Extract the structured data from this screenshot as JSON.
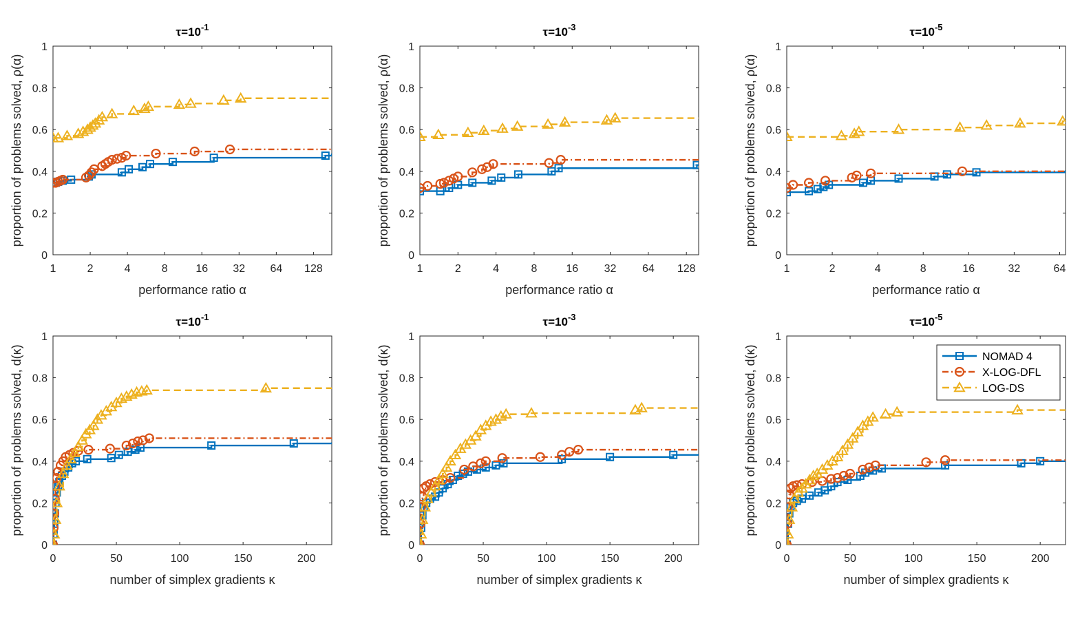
{
  "colors": {
    "nomad": "#0072BD",
    "xlogdfl": "#D95319",
    "logds": "#EDB120",
    "axis": "#262626"
  },
  "legend": {
    "entries": [
      "NOMAD 4",
      "X-LOG-DFL",
      "LOG-DS"
    ]
  },
  "chart_data": [
    {
      "type": "line",
      "xscale": "log2",
      "title": {
        "prefix": "τ=10",
        "exp": "-1"
      },
      "xlabel": "performance ratio α",
      "ylabel": "proportion of problems solved, ρ(α)",
      "xlim": [
        1,
        180
      ],
      "ylim": [
        0,
        1
      ],
      "xticks": [
        1,
        2,
        4,
        8,
        16,
        32,
        64,
        128
      ],
      "xticklabels": [
        "1",
        "2",
        "4",
        "8",
        "16",
        "32",
        "64",
        "128"
      ],
      "yticks": [
        0,
        0.2,
        0.4,
        0.6,
        0.8,
        1
      ],
      "yticklabels": [
        "0",
        "0.2",
        "0.4",
        "0.6",
        "0.8",
        "1"
      ],
      "series": [
        {
          "name": "NOMAD 4",
          "x": [
            1,
            1.05,
            1.1,
            1.2,
            1.4,
            1.95,
            2.05,
            3.6,
            4.1,
            5.3,
            6.1,
            9.3,
            20,
            160,
            180
          ],
          "y": [
            0.345,
            0.345,
            0.35,
            0.355,
            0.36,
            0.375,
            0.385,
            0.395,
            0.41,
            0.42,
            0.435,
            0.445,
            0.465,
            0.475,
            0.485
          ]
        },
        {
          "name": "X-LOG-DFL",
          "x": [
            1,
            1.05,
            1.1,
            1.15,
            1.2,
            1.85,
            1.95,
            2.05,
            2.15,
            2.5,
            2.65,
            2.8,
            3.0,
            3.3,
            3.6,
            3.9,
            6.8,
            14,
            27,
            180
          ],
          "y": [
            0.345,
            0.345,
            0.35,
            0.355,
            0.36,
            0.37,
            0.38,
            0.395,
            0.41,
            0.425,
            0.435,
            0.445,
            0.455,
            0.46,
            0.465,
            0.475,
            0.485,
            0.495,
            0.505,
            0.505
          ]
        },
        {
          "name": "LOG-DS",
          "x": [
            1,
            1.1,
            1.3,
            1.6,
            1.75,
            1.9,
            2.0,
            2.1,
            2.2,
            2.35,
            2.5,
            3.0,
            4.5,
            5.5,
            5.9,
            10.5,
            13,
            24,
            33,
            180
          ],
          "y": [
            0.56,
            0.56,
            0.57,
            0.58,
            0.59,
            0.6,
            0.61,
            0.62,
            0.63,
            0.645,
            0.66,
            0.675,
            0.69,
            0.7,
            0.71,
            0.72,
            0.725,
            0.74,
            0.75,
            0.75
          ]
        }
      ]
    },
    {
      "type": "line",
      "xscale": "log2",
      "title": {
        "prefix": "τ=10",
        "exp": "-3"
      },
      "xlabel": "performance ratio α",
      "ylabel": "proportion of problems solved, ρ(α)",
      "xlim": [
        1,
        160
      ],
      "ylim": [
        0,
        1
      ],
      "xticks": [
        1,
        2,
        4,
        8,
        16,
        32,
        64,
        128
      ],
      "xticklabels": [
        "1",
        "2",
        "4",
        "8",
        "16",
        "32",
        "64",
        "128"
      ],
      "yticks": [
        0,
        0.2,
        0.4,
        0.6,
        0.8,
        1
      ],
      "yticklabels": [
        "0",
        "0.2",
        "0.4",
        "0.6",
        "0.8",
        "1"
      ],
      "series": [
        {
          "name": "NOMAD 4",
          "x": [
            1,
            1.45,
            1.7,
            2.0,
            2.6,
            3.7,
            4.4,
            6.0,
            11,
            12.5,
            155,
            160
          ],
          "y": [
            0.305,
            0.305,
            0.32,
            0.335,
            0.345,
            0.355,
            0.37,
            0.385,
            0.4,
            0.415,
            0.43,
            0.43
          ]
        },
        {
          "name": "X-LOG-DFL",
          "x": [
            1,
            1.15,
            1.45,
            1.55,
            1.7,
            1.85,
            2.0,
            2.6,
            3.1,
            3.4,
            3.8,
            10.5,
            13,
            160
          ],
          "y": [
            0.32,
            0.33,
            0.34,
            0.345,
            0.355,
            0.365,
            0.375,
            0.395,
            0.41,
            0.42,
            0.435,
            0.44,
            0.455,
            0.455
          ]
        },
        {
          "name": "LOG-DS",
          "x": [
            1,
            1.4,
            2.4,
            3.2,
            4.5,
            5.9,
            10.3,
            14,
            30,
            35,
            160
          ],
          "y": [
            0.565,
            0.575,
            0.585,
            0.595,
            0.605,
            0.615,
            0.625,
            0.635,
            0.645,
            0.655,
            0.655
          ]
        }
      ]
    },
    {
      "type": "line",
      "xscale": "log2",
      "title": {
        "prefix": "τ=10",
        "exp": "-5"
      },
      "xlabel": "performance ratio α",
      "ylabel": "proportion of problems solved, ρ(α)",
      "xlim": [
        1,
        70
      ],
      "ylim": [
        0,
        1
      ],
      "xticks": [
        1,
        2,
        4,
        8,
        16,
        32,
        64
      ],
      "xticklabels": [
        "1",
        "2",
        "4",
        "8",
        "16",
        "32",
        "64"
      ],
      "yticks": [
        0,
        0.2,
        0.4,
        0.6,
        0.8,
        1
      ],
      "yticklabels": [
        "0",
        "0.2",
        "0.4",
        "0.6",
        "0.8",
        "1"
      ],
      "series": [
        {
          "name": "NOMAD 4",
          "x": [
            1,
            1.4,
            1.6,
            1.75,
            1.9,
            3.2,
            3.6,
            5.5,
            9.5,
            11.5,
            18,
            70
          ],
          "y": [
            0.3,
            0.305,
            0.315,
            0.325,
            0.335,
            0.345,
            0.355,
            0.365,
            0.375,
            0.385,
            0.395,
            0.405
          ]
        },
        {
          "name": "X-LOG-DFL",
          "x": [
            1,
            1.1,
            1.4,
            1.8,
            2.7,
            2.9,
            3.6,
            14.5,
            70
          ],
          "y": [
            0.32,
            0.335,
            0.345,
            0.355,
            0.37,
            0.38,
            0.39,
            0.4,
            0.405
          ]
        },
        {
          "name": "LOG-DS",
          "x": [
            1,
            2.3,
            2.8,
            3.0,
            5.5,
            14,
            21,
            35,
            67,
            70
          ],
          "y": [
            0.565,
            0.57,
            0.58,
            0.59,
            0.6,
            0.61,
            0.62,
            0.63,
            0.64,
            0.64
          ]
        }
      ]
    },
    {
      "type": "line",
      "xscale": "linear",
      "title": {
        "prefix": "τ=10",
        "exp": "-1"
      },
      "xlabel": "number of simplex gradients κ",
      "ylabel": "proportion of problems solved, d(κ)",
      "xlim": [
        0,
        220
      ],
      "ylim": [
        0,
        1
      ],
      "xticks": [
        0,
        50,
        100,
        150,
        200
      ],
      "xticklabels": [
        "0",
        "50",
        "100",
        "150",
        "200"
      ],
      "yticks": [
        0,
        0.2,
        0.4,
        0.6,
        0.8,
        1
      ],
      "yticklabels": [
        "0",
        "0.2",
        "0.4",
        "0.6",
        "0.8",
        "1"
      ],
      "series": [
        {
          "name": "NOMAD 4",
          "x": [
            0,
            0.5,
            1,
            1.5,
            2,
            3,
            4,
            5,
            7,
            9,
            12,
            15,
            18,
            27,
            46,
            52,
            59,
            65,
            69,
            125,
            190,
            220
          ],
          "y": [
            0,
            0.05,
            0.1,
            0.15,
            0.2,
            0.25,
            0.28,
            0.3,
            0.33,
            0.35,
            0.37,
            0.39,
            0.4,
            0.41,
            0.415,
            0.43,
            0.445,
            0.455,
            0.465,
            0.475,
            0.485,
            0.49
          ]
        },
        {
          "name": "X-LOG-DFL",
          "x": [
            0,
            0.5,
            1,
            1.5,
            2,
            3,
            4,
            6,
            8,
            10,
            13,
            16,
            20,
            28,
            45,
            58,
            63,
            67,
            71,
            76,
            220
          ],
          "y": [
            0,
            0.08,
            0.15,
            0.22,
            0.28,
            0.32,
            0.35,
            0.38,
            0.4,
            0.42,
            0.43,
            0.44,
            0.45,
            0.455,
            0.46,
            0.475,
            0.485,
            0.495,
            0.5,
            0.51,
            0.51
          ]
        },
        {
          "name": "LOG-DS",
          "x": [
            0,
            1,
            2,
            3,
            5,
            8,
            11,
            14,
            17,
            20,
            23,
            26,
            29,
            32,
            35,
            38,
            42,
            46,
            50,
            54,
            58,
            62,
            66,
            70,
            74,
            168,
            220
          ],
          "y": [
            0,
            0.05,
            0.12,
            0.2,
            0.28,
            0.34,
            0.38,
            0.41,
            0.44,
            0.47,
            0.5,
            0.53,
            0.55,
            0.57,
            0.6,
            0.62,
            0.64,
            0.66,
            0.68,
            0.7,
            0.71,
            0.72,
            0.73,
            0.735,
            0.74,
            0.75,
            0.75
          ]
        }
      ]
    },
    {
      "type": "line",
      "xscale": "linear",
      "title": {
        "prefix": "τ=10",
        "exp": "-3"
      },
      "xlabel": "number of simplex gradients κ",
      "ylabel": "proportion of problems solved, d(κ)",
      "xlim": [
        0,
        220
      ],
      "ylim": [
        0,
        1
      ],
      "xticks": [
        0,
        50,
        100,
        150,
        200
      ],
      "xticklabels": [
        "0",
        "50",
        "100",
        "150",
        "200"
      ],
      "yticks": [
        0,
        0.2,
        0.4,
        0.6,
        0.8,
        1
      ],
      "yticklabels": [
        "0",
        "0.2",
        "0.4",
        "0.6",
        "0.8",
        "1"
      ],
      "series": [
        {
          "name": "NOMAD 4",
          "x": [
            0,
            1,
            2,
            3,
            5,
            8,
            12,
            15,
            18,
            22,
            26,
            30,
            34,
            38,
            45,
            52,
            60,
            66,
            112,
            150,
            200,
            220
          ],
          "y": [
            0,
            0.08,
            0.14,
            0.18,
            0.2,
            0.22,
            0.23,
            0.25,
            0.27,
            0.29,
            0.31,
            0.33,
            0.34,
            0.35,
            0.36,
            0.37,
            0.38,
            0.39,
            0.41,
            0.42,
            0.43,
            0.435
          ]
        },
        {
          "name": "X-LOG-DFL",
          "x": [
            0,
            0.5,
            1,
            2,
            3,
            5,
            8,
            12,
            18,
            24,
            35,
            42,
            48,
            52,
            65,
            95,
            112,
            118,
            125,
            220
          ],
          "y": [
            0,
            0.1,
            0.18,
            0.23,
            0.27,
            0.28,
            0.29,
            0.3,
            0.31,
            0.32,
            0.36,
            0.375,
            0.39,
            0.4,
            0.415,
            0.42,
            0.43,
            0.445,
            0.455,
            0.455
          ]
        },
        {
          "name": "LOG-DS",
          "x": [
            0,
            1,
            2,
            4,
            6,
            9,
            12,
            15,
            18,
            21,
            24,
            28,
            32,
            36,
            40,
            44,
            48,
            52,
            56,
            60,
            64,
            68,
            88,
            170,
            175,
            220
          ],
          "y": [
            0,
            0.05,
            0.12,
            0.18,
            0.22,
            0.25,
            0.28,
            0.31,
            0.34,
            0.37,
            0.4,
            0.43,
            0.46,
            0.48,
            0.5,
            0.52,
            0.55,
            0.57,
            0.59,
            0.6,
            0.615,
            0.625,
            0.63,
            0.645,
            0.655,
            0.655
          ]
        }
      ]
    },
    {
      "type": "line",
      "xscale": "linear",
      "title": {
        "prefix": "τ=10",
        "exp": "-5"
      },
      "xlabel": "number of simplex gradients κ",
      "ylabel": "proportion of problems solved, d(κ)",
      "xlim": [
        0,
        220
      ],
      "ylim": [
        0,
        1
      ],
      "xticks": [
        0,
        50,
        100,
        150,
        200
      ],
      "xticklabels": [
        "0",
        "50",
        "100",
        "150",
        "200"
      ],
      "yticks": [
        0,
        0.2,
        0.4,
        0.6,
        0.8,
        1
      ],
      "yticklabels": [
        "0",
        "0.2",
        "0.4",
        "0.6",
        "0.8",
        "1"
      ],
      "series": [
        {
          "name": "NOMAD 4",
          "x": [
            0,
            1,
            2,
            3,
            5,
            8,
            12,
            18,
            25,
            30,
            35,
            40,
            48,
            58,
            62,
            68,
            75,
            125,
            185,
            200,
            220
          ],
          "y": [
            0,
            0.1,
            0.15,
            0.18,
            0.2,
            0.21,
            0.22,
            0.235,
            0.25,
            0.26,
            0.28,
            0.3,
            0.31,
            0.33,
            0.345,
            0.355,
            0.365,
            0.38,
            0.39,
            0.4,
            0.405
          ]
        },
        {
          "name": "X-LOG-DFL",
          "x": [
            0,
            0.5,
            1,
            2,
            3,
            5,
            8,
            12,
            20,
            28,
            35,
            40,
            45,
            50,
            60,
            65,
            70,
            110,
            125,
            220
          ],
          "y": [
            0,
            0.1,
            0.18,
            0.24,
            0.27,
            0.28,
            0.285,
            0.29,
            0.3,
            0.305,
            0.315,
            0.32,
            0.33,
            0.34,
            0.36,
            0.37,
            0.38,
            0.395,
            0.405,
            0.405
          ]
        },
        {
          "name": "LOG-DS",
          "x": [
            0,
            1,
            2,
            4,
            6,
            9,
            12,
            15,
            18,
            21,
            24,
            28,
            32,
            36,
            40,
            44,
            48,
            52,
            56,
            60,
            64,
            68,
            78,
            87,
            182,
            220
          ],
          "y": [
            0,
            0.05,
            0.12,
            0.18,
            0.22,
            0.25,
            0.27,
            0.29,
            0.31,
            0.33,
            0.34,
            0.36,
            0.38,
            0.4,
            0.42,
            0.45,
            0.48,
            0.51,
            0.54,
            0.57,
            0.59,
            0.61,
            0.625,
            0.635,
            0.645,
            0.645
          ]
        }
      ]
    }
  ]
}
